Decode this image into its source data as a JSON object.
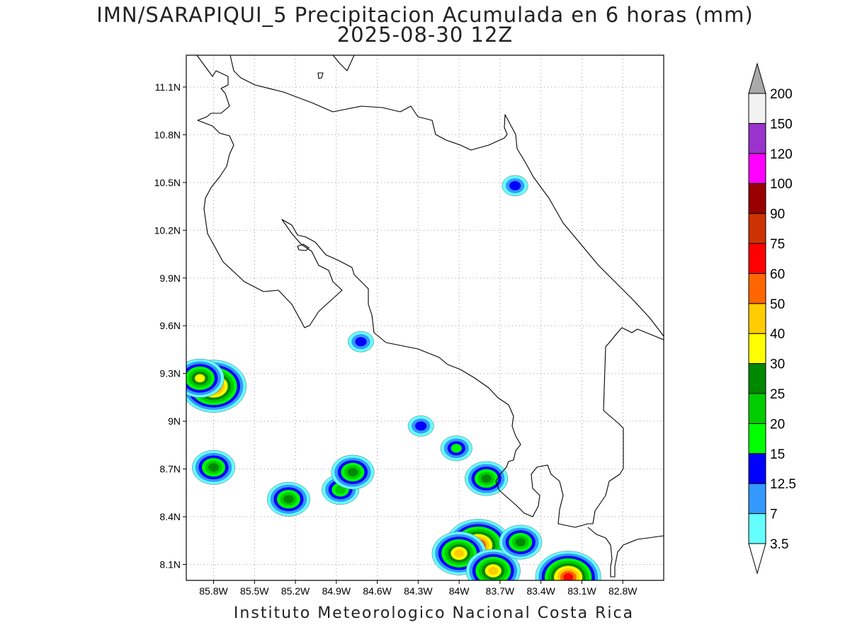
{
  "title": "IMN/SARAPIQUI_5 Precipitacion Acumulada en 6 horas (mm)",
  "subtitle": "2025-08-30 12Z",
  "footer": "Instituto Meteorologico Nacional Costa Rica",
  "map": {
    "lon_range": [
      -86.0,
      -82.5
    ],
    "lat_range": [
      8.0,
      11.3
    ],
    "lon_ticks": [
      {
        "value": -85.8,
        "label": "85.8W"
      },
      {
        "value": -85.5,
        "label": "85.5W"
      },
      {
        "value": -85.2,
        "label": "85.2W"
      },
      {
        "value": -84.9,
        "label": "84.9W"
      },
      {
        "value": -84.6,
        "label": "84.6W"
      },
      {
        "value": -84.3,
        "label": "84.3W"
      },
      {
        "value": -84.0,
        "label": "84W"
      },
      {
        "value": -83.7,
        "label": "83.7W"
      },
      {
        "value": -83.4,
        "label": "83.4W"
      },
      {
        "value": -83.1,
        "label": "83.1W"
      },
      {
        "value": -82.8,
        "label": "82.8W"
      }
    ],
    "lat_ticks": [
      {
        "value": 11.1,
        "label": "11.1N"
      },
      {
        "value": 10.8,
        "label": "10.8N"
      },
      {
        "value": 10.5,
        "label": "10.5N"
      },
      {
        "value": 10.2,
        "label": "10.2N"
      },
      {
        "value": 9.9,
        "label": "9.9N"
      },
      {
        "value": 9.6,
        "label": "9.6N"
      },
      {
        "value": 9.3,
        "label": "9.3N"
      },
      {
        "value": 9.0,
        "label": "9N"
      },
      {
        "value": 8.7,
        "label": "8.7N"
      },
      {
        "value": 8.4,
        "label": "8.4N"
      },
      {
        "value": 8.1,
        "label": "8.1N"
      }
    ],
    "grid": "dotted",
    "precip_cells": [
      {
        "lon": -85.8,
        "lat": 9.22,
        "max_mm": 60
      },
      {
        "lon": -85.9,
        "lat": 9.27,
        "max_mm": 30
      },
      {
        "lon": -85.8,
        "lat": 8.71,
        "max_mm": 25
      },
      {
        "lon": -85.25,
        "lat": 8.51,
        "max_mm": 25
      },
      {
        "lon": -84.87,
        "lat": 8.57,
        "max_mm": 20
      },
      {
        "lon": -84.78,
        "lat": 8.68,
        "max_mm": 25
      },
      {
        "lon": -84.28,
        "lat": 8.97,
        "max_mm": 12.5
      },
      {
        "lon": -84.02,
        "lat": 8.83,
        "max_mm": 15
      },
      {
        "lon": -84.72,
        "lat": 9.5,
        "max_mm": 12.5
      },
      {
        "lon": -83.8,
        "lat": 8.64,
        "max_mm": 25
      },
      {
        "lon": -83.86,
        "lat": 8.22,
        "max_mm": 60
      },
      {
        "lon": -84.0,
        "lat": 8.17,
        "max_mm": 40
      },
      {
        "lon": -83.75,
        "lat": 8.06,
        "max_mm": 40
      },
      {
        "lon": -83.55,
        "lat": 8.24,
        "max_mm": 25
      },
      {
        "lon": -83.2,
        "lat": 8.02,
        "max_mm": 60
      },
      {
        "lon": -83.59,
        "lat": 10.48,
        "max_mm": 12.5
      }
    ]
  },
  "colorbar": {
    "levels": [
      {
        "label": "3.5",
        "color": "#66ffff"
      },
      {
        "label": "7",
        "color": "#3399ff"
      },
      {
        "label": "12.5",
        "color": "#0000ff"
      },
      {
        "label": "15",
        "color": "#00ff00"
      },
      {
        "label": "20",
        "color": "#00cc00"
      },
      {
        "label": "25",
        "color": "#008800"
      },
      {
        "label": "30",
        "color": "#ffff00"
      },
      {
        "label": "40",
        "color": "#ffcc00"
      },
      {
        "label": "50",
        "color": "#ff6600"
      },
      {
        "label": "60",
        "color": "#ff0000"
      },
      {
        "label": "75",
        "color": "#cc3300"
      },
      {
        "label": "90",
        "color": "#990000"
      },
      {
        "label": "100",
        "color": "#ff00ff"
      },
      {
        "label": "120",
        "color": "#9933cc"
      },
      {
        "label": "150",
        "color": "#f2f2f2"
      },
      {
        "label": "200",
        "color": "#aaaaaa"
      }
    ]
  }
}
